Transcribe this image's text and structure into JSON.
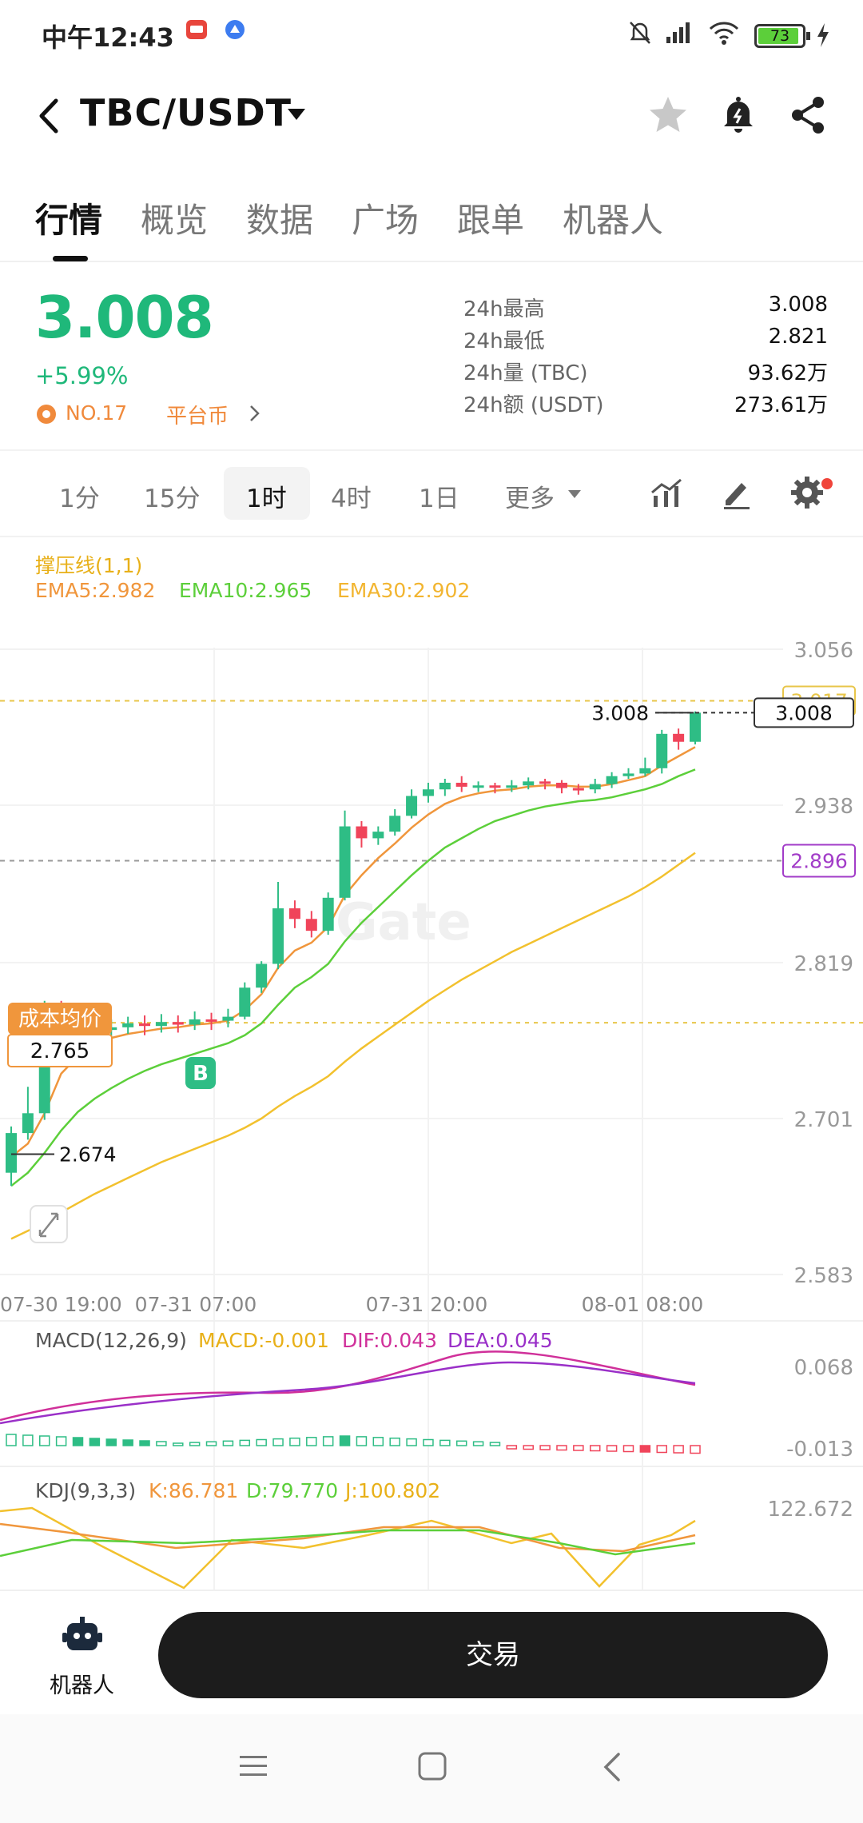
{
  "status_bar": {
    "time": "中午12:43",
    "battery": "73"
  },
  "header": {
    "pair": "TBC/USDT"
  },
  "tabs": [
    {
      "label": "行情",
      "active": true
    },
    {
      "label": "概览",
      "active": false
    },
    {
      "label": "数据",
      "active": false
    },
    {
      "label": "广场",
      "active": false
    },
    {
      "label": "跟单",
      "active": false
    },
    {
      "label": "机器人",
      "active": false
    }
  ],
  "ticker": {
    "price": "3.008",
    "change": "+5.99%",
    "rank": "NO.17",
    "platform": "平台币"
  },
  "stats": [
    {
      "label": "24h最高",
      "value": "3.008"
    },
    {
      "label": "24h最低",
      "value": "2.821"
    },
    {
      "label": "24h量 (TBC)",
      "value": "93.62万"
    },
    {
      "label": "24h额 (USDT)",
      "value": "273.61万"
    }
  ],
  "timeframes": [
    {
      "label": "1分",
      "active": false
    },
    {
      "label": "15分",
      "active": false
    },
    {
      "label": "1时",
      "active": true
    },
    {
      "label": "4时",
      "active": false
    },
    {
      "label": "1日",
      "active": false
    },
    {
      "label": "更多",
      "active": false
    }
  ],
  "indicators": {
    "sr_label": "撑压线(1,1)",
    "ema5": "EMA5:2.982",
    "ema10": "EMA10:2.965",
    "ema30": "EMA30:2.902",
    "macd_name": "MACD(12,26,9)",
    "macd_val": "MACD:-0.001",
    "dif": "DIF:0.043",
    "dea": "DEA:0.045",
    "kdj_name": "KDJ(9,3,3)",
    "k": "K:86.781",
    "d": "D:79.770",
    "j": "J:100.802"
  },
  "chart_data": {
    "type": "candlestick",
    "y_ticks": [
      "3.056",
      "2.938",
      "2.819",
      "2.701",
      "2.583"
    ],
    "x_ticks": [
      "07-30 19:00",
      "07-31 07:00",
      "07-31 20:00",
      "08-01 08:00"
    ],
    "ylim": [
      2.583,
      3.056
    ],
    "current_price": "3.008",
    "resistance": "3.017",
    "support": "2.896",
    "cost_avg_label": "成本均价",
    "cost_avg": "2.765",
    "high_marker": "3.008",
    "low_marker": "2.674",
    "buy_marker": "B",
    "candles": [
      [
        2.66,
        2.69,
        2.65,
        2.695
      ],
      [
        2.69,
        2.705,
        2.685,
        2.725
      ],
      [
        2.705,
        2.785,
        2.7,
        2.79
      ],
      [
        2.785,
        2.77,
        2.765,
        2.79
      ],
      [
        2.77,
        2.772,
        2.76,
        2.78
      ],
      [
        2.772,
        2.768,
        2.76,
        2.778
      ],
      [
        2.768,
        2.77,
        2.762,
        2.776
      ],
      [
        2.77,
        2.773,
        2.765,
        2.778
      ],
      [
        2.773,
        2.771,
        2.764,
        2.779
      ],
      [
        2.771,
        2.774,
        2.766,
        2.78
      ],
      [
        2.774,
        2.772,
        2.766,
        2.779
      ],
      [
        2.772,
        2.776,
        2.768,
        2.782
      ],
      [
        2.776,
        2.775,
        2.768,
        2.781
      ],
      [
        2.775,
        2.778,
        2.77,
        2.784
      ],
      [
        2.778,
        2.8,
        2.776,
        2.804
      ],
      [
        2.8,
        2.818,
        2.796,
        2.82
      ],
      [
        2.818,
        2.86,
        2.814,
        2.88
      ],
      [
        2.86,
        2.852,
        2.845,
        2.866
      ],
      [
        2.852,
        2.843,
        2.838,
        2.858
      ],
      [
        2.843,
        2.868,
        2.84,
        2.872
      ],
      [
        2.868,
        2.922,
        2.866,
        2.934
      ],
      [
        2.922,
        2.913,
        2.906,
        2.926
      ],
      [
        2.913,
        2.918,
        2.908,
        2.922
      ],
      [
        2.918,
        2.93,
        2.915,
        2.935
      ],
      [
        2.93,
        2.945,
        2.928,
        2.95
      ],
      [
        2.945,
        2.95,
        2.94,
        2.955
      ],
      [
        2.95,
        2.955,
        2.945,
        2.958
      ],
      [
        2.955,
        2.952,
        2.948,
        2.96
      ],
      [
        2.952,
        2.953,
        2.948,
        2.956
      ],
      [
        2.953,
        2.952,
        2.947,
        2.955
      ],
      [
        2.952,
        2.953,
        2.948,
        2.957
      ],
      [
        2.953,
        2.956,
        2.95,
        2.959
      ],
      [
        2.956,
        2.955,
        2.95,
        2.958
      ],
      [
        2.955,
        2.951,
        2.947,
        2.957
      ],
      [
        2.951,
        2.95,
        2.946,
        2.954
      ],
      [
        2.95,
        2.954,
        2.947,
        2.958
      ],
      [
        2.954,
        2.96,
        2.951,
        2.963
      ],
      [
        2.96,
        2.962,
        2.958,
        2.966
      ],
      [
        2.962,
        2.966,
        2.96,
        2.974
      ],
      [
        2.966,
        2.992,
        2.962,
        2.995
      ],
      [
        2.992,
        2.986,
        2.98,
        2.996
      ],
      [
        2.986,
        3.008,
        2.984,
        3.009
      ]
    ],
    "ema5": [
      2.672,
      2.682,
      2.705,
      2.735,
      2.748,
      2.757,
      2.762,
      2.765,
      2.767,
      2.769,
      2.77,
      2.772,
      2.773,
      2.775,
      2.783,
      2.795,
      2.815,
      2.828,
      2.834,
      2.846,
      2.87,
      2.885,
      2.898,
      2.909,
      2.921,
      2.931,
      2.939,
      2.944,
      2.947,
      2.949,
      2.95,
      2.952,
      2.953,
      2.953,
      2.952,
      2.952,
      2.954,
      2.957,
      2.96,
      2.968,
      2.975,
      2.982
    ],
    "ema10": [
      2.65,
      2.66,
      2.675,
      2.692,
      2.706,
      2.716,
      2.724,
      2.731,
      2.737,
      2.742,
      2.746,
      2.75,
      2.754,
      2.758,
      2.764,
      2.773,
      2.787,
      2.8,
      2.808,
      2.818,
      2.835,
      2.849,
      2.861,
      2.873,
      2.885,
      2.896,
      2.906,
      2.913,
      2.92,
      2.926,
      2.93,
      2.934,
      2.937,
      2.939,
      2.941,
      2.942,
      2.944,
      2.947,
      2.95,
      2.954,
      2.96,
      2.965
    ],
    "ema30": [
      2.61,
      2.616,
      2.622,
      2.63,
      2.637,
      2.644,
      2.65,
      2.656,
      2.662,
      2.668,
      2.673,
      2.678,
      2.683,
      2.688,
      2.694,
      2.701,
      2.71,
      2.718,
      2.725,
      2.733,
      2.744,
      2.754,
      2.763,
      2.772,
      2.781,
      2.79,
      2.798,
      2.806,
      2.813,
      2.82,
      2.827,
      2.833,
      2.839,
      2.845,
      2.851,
      2.857,
      2.863,
      2.869,
      2.876,
      2.884,
      2.893,
      2.902
    ],
    "macd": {
      "y_ticks": [
        "0.068",
        "-0.013"
      ],
      "ylim": [
        -0.02,
        0.075
      ]
    },
    "kdj": {
      "y_ticks": [
        "122.672"
      ],
      "ylim": [
        0,
        130
      ]
    }
  },
  "bottom": {
    "robot_label": "机器人",
    "trade_label": "交易"
  },
  "colors": {
    "up": "#2ebd85",
    "down": "#f0445a",
    "ema5": "#f0963c",
    "ema10": "#5ccf3a",
    "ema30": "#f2c12e",
    "support": "#a23cc8"
  }
}
